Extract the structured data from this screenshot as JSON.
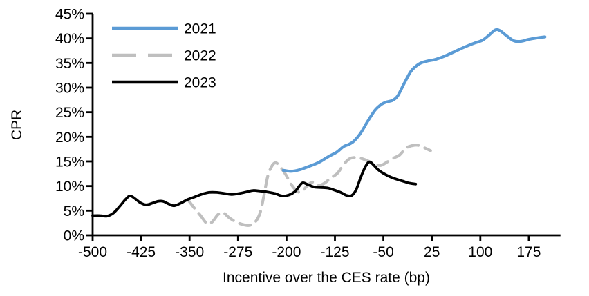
{
  "chart_data": {
    "type": "line",
    "title": "",
    "xlabel": "Incentive over the CES rate (bp)",
    "ylabel": "CPR",
    "xlim": [
      -500,
      224
    ],
    "ylim": [
      0,
      45
    ],
    "x_ticks": [
      -500,
      -425,
      -350,
      -275,
      -200,
      -125,
      -50,
      25,
      100,
      175
    ],
    "y_ticks": [
      0,
      5,
      10,
      15,
      20,
      25,
      30,
      35,
      40,
      45
    ],
    "y_tick_suffix": "%",
    "grid": false,
    "legend": {
      "position": "top-left-inside",
      "entries": [
        "2021",
        "2022",
        "2023"
      ]
    },
    "colors": {
      "series_2021": "#5B9BD5",
      "series_2022": "#BFBFBF",
      "series_2023": "#000000",
      "axis": "#000000",
      "text": "#000000",
      "background": "#FFFFFF"
    },
    "draw_order": [
      "2022",
      "2021",
      "2023"
    ],
    "series": [
      {
        "name": "2021",
        "color": "#5B9BD5",
        "style": "solid",
        "stroke_width": 4.2,
        "points": [
          [
            -205,
            13.2
          ],
          [
            -193,
            13.0
          ],
          [
            -180,
            13.3
          ],
          [
            -165,
            14.0
          ],
          [
            -150,
            14.8
          ],
          [
            -135,
            16.0
          ],
          [
            -122,
            16.9
          ],
          [
            -112,
            18.0
          ],
          [
            -103,
            18.5
          ],
          [
            -95,
            19.2
          ],
          [
            -85,
            20.8
          ],
          [
            -75,
            23.0
          ],
          [
            -63,
            25.4
          ],
          [
            -53,
            26.6
          ],
          [
            -45,
            27.1
          ],
          [
            -36,
            27.4
          ],
          [
            -28,
            28.3
          ],
          [
            -18,
            30.8
          ],
          [
            -8,
            33.2
          ],
          [
            0,
            34.3
          ],
          [
            8,
            35.0
          ],
          [
            18,
            35.4
          ],
          [
            30,
            35.7
          ],
          [
            45,
            36.4
          ],
          [
            60,
            37.3
          ],
          [
            75,
            38.2
          ],
          [
            90,
            39.0
          ],
          [
            103,
            39.6
          ],
          [
            113,
            40.6
          ],
          [
            123,
            41.7
          ],
          [
            130,
            41.6
          ],
          [
            140,
            40.6
          ],
          [
            152,
            39.5
          ],
          [
            163,
            39.4
          ],
          [
            175,
            39.8
          ],
          [
            188,
            40.1
          ],
          [
            200,
            40.3
          ]
        ]
      },
      {
        "name": "2022",
        "color": "#BFBFBF",
        "style": "dashed",
        "stroke_width": 4.2,
        "points": [
          [
            -353,
            7.3
          ],
          [
            -343,
            5.6
          ],
          [
            -333,
            4.0
          ],
          [
            -323,
            2.4
          ],
          [
            -315,
            2.7
          ],
          [
            -306,
            4.2
          ],
          [
            -298,
            4.6
          ],
          [
            -289,
            3.6
          ],
          [
            -278,
            2.7
          ],
          [
            -268,
            2.2
          ],
          [
            -258,
            2.0
          ],
          [
            -249,
            2.6
          ],
          [
            -241,
            4.5
          ],
          [
            -235,
            8.0
          ],
          [
            -229,
            12.0
          ],
          [
            -222,
            14.2
          ],
          [
            -216,
            14.7
          ],
          [
            -209,
            13.8
          ],
          [
            -201,
            12.3
          ],
          [
            -193,
            10.4
          ],
          [
            -184,
            9.0
          ],
          [
            -177,
            8.8
          ],
          [
            -169,
            9.9
          ],
          [
            -160,
            10.8
          ],
          [
            -151,
            10.1
          ],
          [
            -141,
            10.6
          ],
          [
            -131,
            11.7
          ],
          [
            -121,
            12.6
          ],
          [
            -112,
            14.3
          ],
          [
            -103,
            15.5
          ],
          [
            -94,
            15.8
          ],
          [
            -84,
            15.6
          ],
          [
            -74,
            15.1
          ],
          [
            -64,
            14.5
          ],
          [
            -54,
            14.2
          ],
          [
            -44,
            14.9
          ],
          [
            -34,
            15.7
          ],
          [
            -25,
            16.3
          ],
          [
            -15,
            17.7
          ],
          [
            -6,
            18.2
          ],
          [
            3,
            18.3
          ],
          [
            13,
            17.8
          ],
          [
            23,
            17.2
          ]
        ]
      },
      {
        "name": "2023",
        "color": "#000000",
        "style": "solid",
        "stroke_width": 3.8,
        "points": [
          [
            -500,
            4.0
          ],
          [
            -488,
            4.0
          ],
          [
            -478,
            3.9
          ],
          [
            -468,
            4.5
          ],
          [
            -458,
            5.9
          ],
          [
            -449,
            7.3
          ],
          [
            -442,
            8.0
          ],
          [
            -434,
            7.4
          ],
          [
            -426,
            6.6
          ],
          [
            -417,
            6.2
          ],
          [
            -408,
            6.5
          ],
          [
            -399,
            6.9
          ],
          [
            -391,
            6.9
          ],
          [
            -383,
            6.4
          ],
          [
            -374,
            6.0
          ],
          [
            -364,
            6.5
          ],
          [
            -354,
            7.2
          ],
          [
            -344,
            7.7
          ],
          [
            -332,
            8.3
          ],
          [
            -320,
            8.7
          ],
          [
            -308,
            8.7
          ],
          [
            -296,
            8.5
          ],
          [
            -285,
            8.3
          ],
          [
            -273,
            8.5
          ],
          [
            -262,
            8.8
          ],
          [
            -252,
            9.1
          ],
          [
            -242,
            9.0
          ],
          [
            -230,
            8.8
          ],
          [
            -218,
            8.5
          ],
          [
            -207,
            8.0
          ],
          [
            -196,
            8.2
          ],
          [
            -186,
            9.0
          ],
          [
            -176,
            10.6
          ],
          [
            -167,
            10.3
          ],
          [
            -157,
            9.8
          ],
          [
            -146,
            9.7
          ],
          [
            -136,
            9.6
          ],
          [
            -126,
            9.2
          ],
          [
            -116,
            8.7
          ],
          [
            -107,
            8.1
          ],
          [
            -99,
            8.1
          ],
          [
            -92,
            9.3
          ],
          [
            -85,
            11.8
          ],
          [
            -78,
            13.9
          ],
          [
            -72,
            14.9
          ],
          [
            -66,
            14.4
          ],
          [
            -58,
            13.3
          ],
          [
            -49,
            12.5
          ],
          [
            -40,
            11.9
          ],
          [
            -30,
            11.4
          ],
          [
            -20,
            11.0
          ],
          [
            -10,
            10.6
          ],
          [
            0,
            10.4
          ]
        ]
      }
    ]
  }
}
